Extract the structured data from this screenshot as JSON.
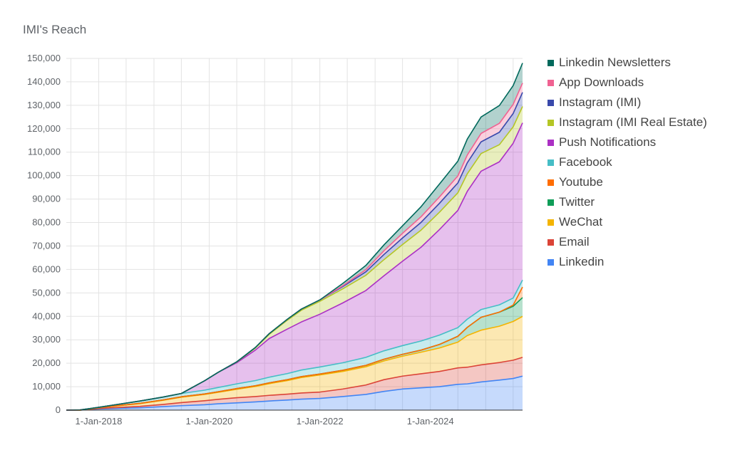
{
  "chart_data": {
    "type": "area",
    "stacked": true,
    "title": "IMI's Reach",
    "xlabel": "",
    "ylabel": "",
    "ylim": [
      0,
      150000
    ],
    "yticks": [
      0,
      10000,
      20000,
      30000,
      40000,
      50000,
      60000,
      70000,
      80000,
      90000,
      100000,
      110000,
      120000,
      130000,
      140000,
      150000
    ],
    "ytick_labels": [
      "0",
      "10,000",
      "20,000",
      "30,000",
      "40,000",
      "50,000",
      "60,000",
      "70,000",
      "80,000",
      "90,000",
      "100,000",
      "110,000",
      "120,000",
      "130,000",
      "140,000",
      "150,000"
    ],
    "xlim": [
      "2017-06-01",
      "2025-09-01"
    ],
    "xticks": [
      "2018-01-01",
      "2020-01-01",
      "2022-01-01",
      "2024-01-01"
    ],
    "xtick_labels": [
      "1-Jan-2018",
      "1-Jan-2020",
      "1-Jan-2022",
      "1-Jan-2024"
    ],
    "grid": true,
    "legend_position": "right",
    "x": [
      "2017-06-01",
      "2017-09-01",
      "2018-01-01",
      "2018-06-01",
      "2018-10-01",
      "2019-03-01",
      "2019-07-01",
      "2019-12-01",
      "2020-03-01",
      "2020-07-01",
      "2020-11-01",
      "2021-02-01",
      "2021-06-01",
      "2021-09-01",
      "2022-01-01",
      "2022-06-01",
      "2022-11-01",
      "2023-03-01",
      "2023-07-01",
      "2023-11-01",
      "2024-03-01",
      "2024-07-01",
      "2024-09-01",
      "2024-12-01",
      "2025-04-01",
      "2025-07-01",
      "2025-09-01"
    ],
    "series": [
      {
        "name": "Linkedin",
        "color": "#4285f4",
        "values": [
          0,
          0,
          500,
          800,
          1000,
          1500,
          1900,
          2300,
          2700,
          3100,
          3500,
          3900,
          4300,
          4700,
          5000,
          5800,
          6700,
          8000,
          9000,
          9500,
          10000,
          11000,
          11200,
          12000,
          12800,
          13500,
          14500
        ]
      },
      {
        "name": "Email",
        "color": "#db4437",
        "values": [
          0,
          0,
          200,
          400,
          600,
          900,
          1300,
          1700,
          1900,
          2200,
          2300,
          2400,
          2500,
          2600,
          2700,
          3200,
          4000,
          5000,
          5500,
          6000,
          6500,
          7000,
          7100,
          7300,
          7500,
          7800,
          8000
        ]
      },
      {
        "name": "WeChat",
        "color": "#f4b400",
        "values": [
          0,
          0,
          300,
          800,
          1200,
          1800,
          2300,
          2700,
          3000,
          3600,
          4300,
          5000,
          5800,
          6600,
          7300,
          7500,
          7800,
          8000,
          8500,
          9200,
          10000,
          11000,
          13500,
          14800,
          15500,
          16500,
          17500
        ]
      },
      {
        "name": "Twitter",
        "color": "#0f9d58",
        "values": [
          0,
          0,
          0,
          100,
          100,
          150,
          200,
          200,
          250,
          300,
          300,
          350,
          400,
          400,
          400,
          500,
          600,
          700,
          800,
          900,
          1500,
          2500,
          3500,
          5500,
          6000,
          6500,
          8000
        ]
      },
      {
        "name": "Youtube",
        "color": "#ff6d00",
        "values": [
          0,
          0,
          0,
          0,
          0,
          0,
          0,
          0,
          0,
          0,
          0,
          0,
          0,
          0,
          0,
          0,
          0,
          0,
          0,
          0,
          0,
          0,
          0,
          0,
          0,
          500,
          4500
        ]
      },
      {
        "name": "Facebook",
        "color": "#46bdc6",
        "values": [
          0,
          100,
          200,
          600,
          1000,
          1200,
          1400,
          1600,
          1800,
          2000,
          2200,
          2400,
          2600,
          2800,
          3000,
          3200,
          3400,
          3600,
          3700,
          3900,
          4000,
          3700,
          3500,
          3300,
          3100,
          3000,
          3000
        ]
      },
      {
        "name": "Push Notifications",
        "color": "#ab30c4",
        "values": [
          0,
          0,
          0,
          0,
          0,
          0,
          0,
          4000,
          6500,
          9000,
          13000,
          16500,
          19000,
          20500,
          22500,
          25500,
          28500,
          32000,
          36000,
          40000,
          45000,
          50000,
          54500,
          59000,
          61000,
          66000,
          67000
        ]
      },
      {
        "name": "Instagram (IMI Real Estate)",
        "color": "#b4c625",
        "values": [
          0,
          0,
          0,
          0,
          0,
          0,
          0,
          0,
          0,
          300,
          900,
          1800,
          3800,
          5000,
          5500,
          6000,
          6500,
          6900,
          7100,
          7300,
          7400,
          7500,
          7500,
          7500,
          7300,
          7000,
          7000
        ]
      },
      {
        "name": "Instagram (IMI)",
        "color": "#3949ab",
        "values": [
          0,
          0,
          0,
          0,
          0,
          0,
          0,
          0,
          0,
          100,
          200,
          300,
          400,
          500,
          600,
          1000,
          1500,
          2200,
          2800,
          3300,
          3800,
          4200,
          4700,
          5000,
          5300,
          5700,
          6000
        ]
      },
      {
        "name": "App Downloads",
        "color": "#f06292",
        "values": [
          0,
          0,
          0,
          0,
          0,
          0,
          0,
          0,
          0,
          0,
          0,
          0,
          0,
          0,
          0,
          300,
          900,
          1600,
          2000,
          2400,
          2700,
          3000,
          3300,
          3600,
          3800,
          3900,
          4000
        ]
      },
      {
        "name": "Linkedin Newsletters",
        "color": "#00695c",
        "values": [
          0,
          0,
          0,
          0,
          0,
          0,
          0,
          0,
          0,
          0,
          0,
          0,
          0,
          0,
          0,
          1000,
          1800,
          2500,
          3200,
          4300,
          5500,
          6300,
          6800,
          7000,
          7600,
          8000,
          8500
        ]
      }
    ]
  }
}
